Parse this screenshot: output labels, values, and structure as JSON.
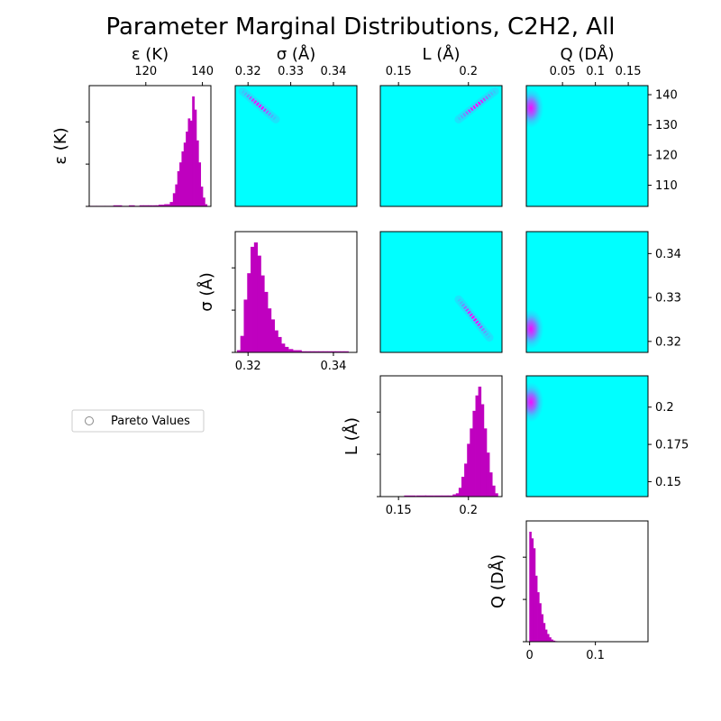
{
  "title": "Parameter Marginal Distributions, C2H2, All",
  "legend": {
    "label": "Pareto Values"
  },
  "colors": {
    "histogram": "#bf00bf",
    "density_background": "#00ffff",
    "density_peak": "#ff00ff",
    "density_mid": "#6f8ff5"
  },
  "chart_data": {
    "type": "heatmap",
    "layout": "corner-plot",
    "parameters": [
      {
        "id": "eps",
        "label": "ε (K)",
        "range": [
          100,
          143
        ],
        "ticks": [
          120,
          140
        ]
      },
      {
        "id": "sig",
        "label": "σ (Å)",
        "range": [
          0.317,
          0.3455
        ],
        "ticks": [
          0.32,
          0.33,
          0.34
        ]
      },
      {
        "id": "L",
        "label": "L (Å)",
        "range": [
          0.137,
          0.224
        ],
        "ticks": [
          0.15,
          0.2
        ]
      },
      {
        "id": "Q",
        "label": "Q (DÅ)",
        "range": [
          -0.005,
          0.18
        ],
        "ticks": [
          0.05,
          0.1,
          0.15
        ]
      }
    ],
    "top_ticks": {
      "eps": [
        120,
        140
      ],
      "sig": [
        0.32,
        0.33,
        0.34
      ],
      "L": [
        0.15,
        0.2
      ],
      "Q": [
        0.05,
        0.1,
        0.15
      ]
    },
    "bottom_ticks": {
      "sig": [
        0.32,
        0.34
      ],
      "L": [
        0.15,
        0.2
      ],
      "Q": [
        0.0,
        0.1
      ]
    },
    "right_axes": [
      {
        "param": "eps",
        "range": [
          103,
          143
        ],
        "ticks": [
          110,
          120,
          130,
          140
        ]
      },
      {
        "param": "sig",
        "range": [
          0.3175,
          0.345
        ],
        "ticks": [
          0.32,
          0.33,
          0.34
        ]
      },
      {
        "param": "L",
        "range": [
          0.14,
          0.221
        ],
        "ticks": [
          0.15,
          0.175,
          0.2
        ]
      }
    ],
    "histograms": [
      {
        "param": "eps",
        "x": [
          101,
          104,
          107,
          110,
          113,
          115,
          117,
          118.5,
          120,
          121.5,
          123,
          124,
          125,
          126,
          127,
          128,
          129,
          130,
          130.75,
          131.5,
          132.25,
          133,
          133.75,
          134.5,
          135.25,
          136,
          136.75,
          137.5,
          138.25,
          139,
          139.75,
          140.5,
          141.25
        ],
        "values": [
          0.5,
          0.5,
          0.5,
          1,
          0.5,
          1,
          0.5,
          1,
          1,
          1,
          1,
          1,
          1.5,
          1.5,
          2,
          2,
          4,
          12,
          20,
          32,
          40,
          50,
          58,
          68,
          80,
          78,
          100,
          88,
          60,
          40,
          18,
          8,
          2
        ]
      },
      {
        "param": "sig",
        "x": [
          0.3178,
          0.3186,
          0.3194,
          0.3202,
          0.321,
          0.3218,
          0.3226,
          0.3234,
          0.3242,
          0.325,
          0.3258,
          0.3266,
          0.3274,
          0.3282,
          0.329,
          0.33,
          0.331,
          0.332,
          0.333,
          0.334,
          0.335,
          0.336,
          0.337,
          0.338,
          0.339,
          0.34,
          0.341,
          0.342,
          0.343
        ],
        "values": [
          2,
          15,
          48,
          72,
          96,
          100,
          88,
          70,
          55,
          40,
          30,
          20,
          14,
          8,
          5,
          3,
          2,
          2,
          1,
          1,
          1,
          1,
          1,
          1,
          1,
          1,
          1,
          1,
          1
        ]
      },
      {
        "param": "L",
        "x": [
          0.158,
          0.166,
          0.172,
          0.178,
          0.183,
          0.187,
          0.19,
          0.192,
          0.194,
          0.196,
          0.198,
          0.2,
          0.202,
          0.204,
          0.206,
          0.208,
          0.21,
          0.212,
          0.214,
          0.216,
          0.218,
          0.22
        ],
        "values": [
          1,
          1,
          1,
          1,
          1,
          1,
          2,
          3,
          8,
          18,
          30,
          48,
          62,
          78,
          92,
          100,
          84,
          62,
          40,
          22,
          10,
          3
        ]
      },
      {
        "param": "Q",
        "x": [
          0.001,
          0.004,
          0.007,
          0.01,
          0.013,
          0.016,
          0.019,
          0.022,
          0.025,
          0.028,
          0.031,
          0.034,
          0.037,
          0.04
        ],
        "values": [
          100,
          94,
          85,
          60,
          45,
          35,
          25,
          17,
          11,
          7,
          4,
          2,
          1,
          0.5
        ]
      }
    ],
    "density_panels": [
      {
        "row": "eps",
        "col": "sig",
        "ridge": {
          "from": [
            0.3187,
            141
          ],
          "to": [
            0.3265,
            131
          ]
        }
      },
      {
        "row": "eps",
        "col": "L",
        "ridge": {
          "from": [
            0.193,
            131
          ],
          "to": [
            0.219,
            141
          ]
        }
      },
      {
        "row": "eps",
        "col": "Q",
        "blob": {
          "center": [
            0.002,
            135
          ]
        }
      },
      {
        "row": "sig",
        "col": "L",
        "ridge": {
          "from": [
            0.193,
            0.3295
          ],
          "to": [
            0.215,
            0.3205
          ]
        }
      },
      {
        "row": "sig",
        "col": "Q",
        "blob": {
          "center": [
            0.002,
            0.3225
          ]
        }
      },
      {
        "row": "L",
        "col": "Q",
        "blob": {
          "center": [
            0.002,
            0.205
          ]
        }
      }
    ]
  }
}
